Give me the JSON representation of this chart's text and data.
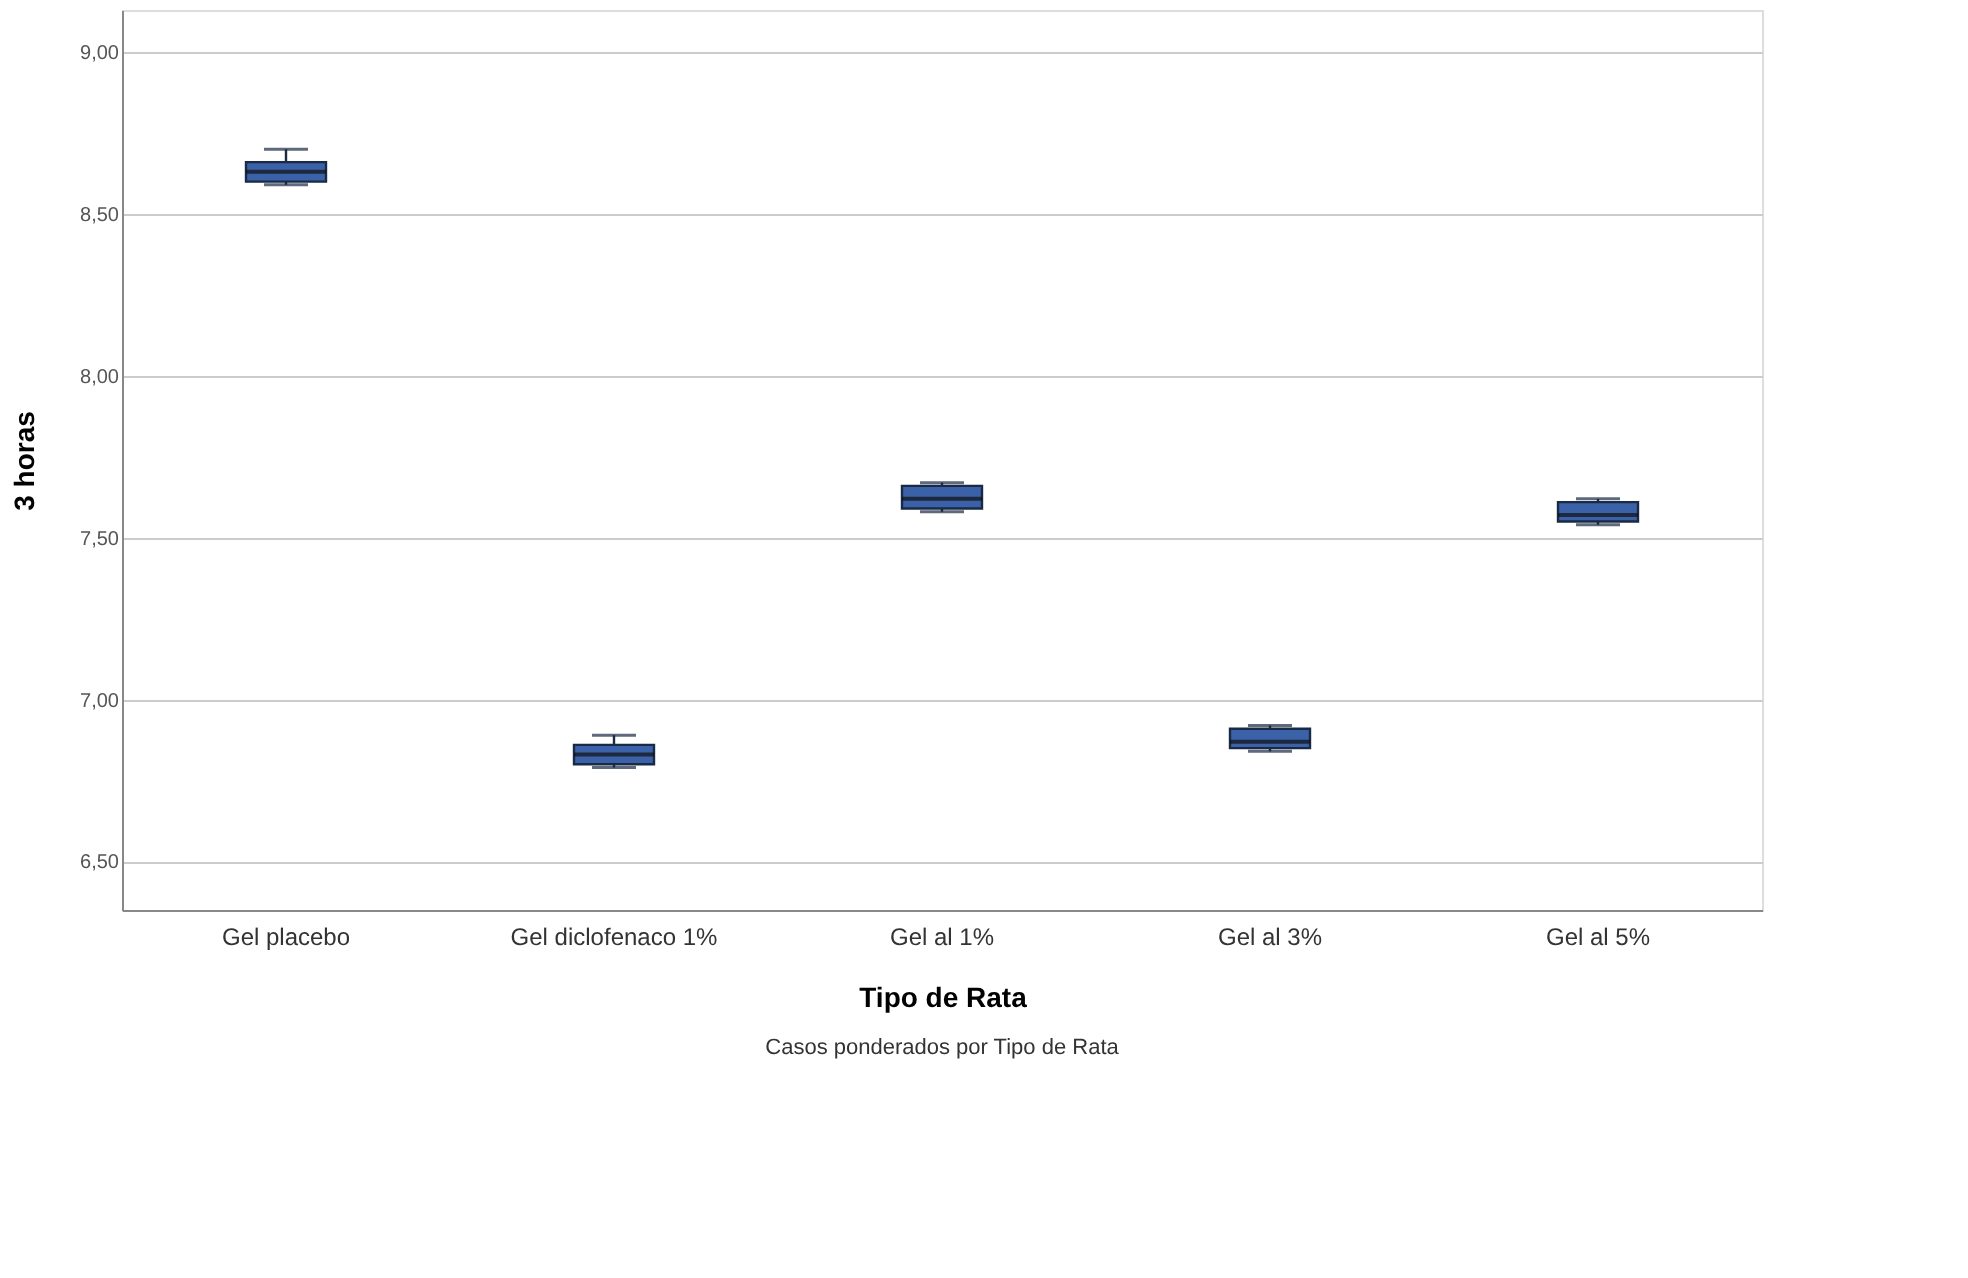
{
  "chart_data": {
    "type": "box",
    "xlabel": "Tipo de Rata",
    "ylabel": "3 horas",
    "categories": [
      "Gel placebo",
      "Gel diclofenaco 1%",
      "Gel al 1%",
      "Gel al 3%",
      "Gel al 5%"
    ],
    "boxes": [
      {
        "low": 8.59,
        "q1": 8.6,
        "median": 8.63,
        "q3": 8.66,
        "high": 8.7
      },
      {
        "low": 6.79,
        "q1": 6.8,
        "median": 6.83,
        "q3": 6.86,
        "high": 6.89
      },
      {
        "low": 7.58,
        "q1": 7.59,
        "median": 7.62,
        "q3": 7.66,
        "high": 7.67
      },
      {
        "low": 6.84,
        "q1": 6.85,
        "median": 6.87,
        "q3": 6.91,
        "high": 6.92
      },
      {
        "low": 7.54,
        "q1": 7.55,
        "median": 7.57,
        "q3": 7.61,
        "high": 7.62
      }
    ],
    "color": "#3b62a8",
    "ylim": [
      6.35,
      9.13
    ],
    "yticks": [
      {
        "value": 6.5,
        "label": "6,50"
      },
      {
        "value": 7.0,
        "label": "7,00"
      },
      {
        "value": 7.5,
        "label": "7,50"
      },
      {
        "value": 8.0,
        "label": "8,00"
      },
      {
        "value": 8.5,
        "label": "8,50"
      },
      {
        "value": 9.0,
        "label": "9,00"
      }
    ],
    "grid": "y",
    "annotations": [
      "Casos ponderados por Tipo de Rata"
    ]
  }
}
